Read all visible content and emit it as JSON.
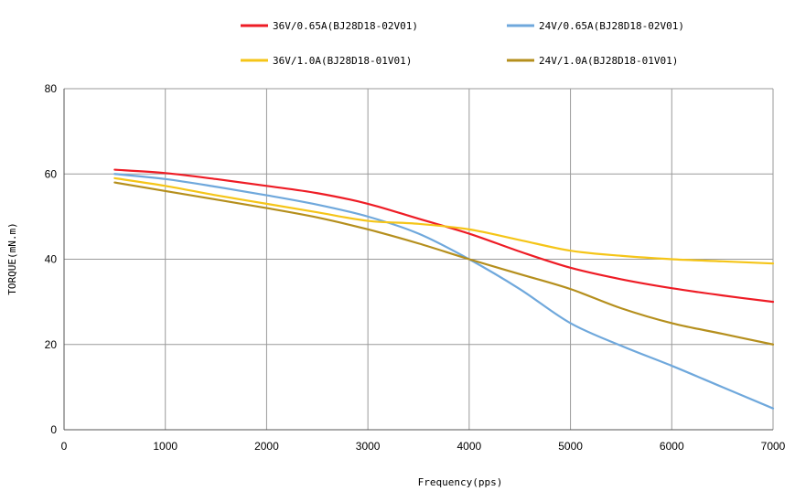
{
  "chart_data": {
    "type": "line",
    "title": "",
    "xlabel": "Frequency(pps)",
    "ylabel": "TORQUE(mN.m)",
    "xlim": [
      0,
      7000
    ],
    "ylim": [
      0,
      80
    ],
    "x_ticks": [
      0,
      1000,
      2000,
      3000,
      4000,
      5000,
      6000,
      7000
    ],
    "y_ticks": [
      0,
      20,
      40,
      60,
      80
    ],
    "grid": true,
    "legend_position": "top",
    "series": [
      {
        "name": "36V/0.65A(BJ28D18-02V01)",
        "color": "#ee1c25",
        "x": [
          500,
          1000,
          1500,
          2000,
          2500,
          3000,
          3500,
          4000,
          4500,
          5000,
          5500,
          6000,
          6500,
          7000
        ],
        "y": [
          61,
          60.2,
          58.8,
          57.2,
          55.5,
          53,
          49.5,
          46,
          41.8,
          38,
          35.3,
          33.2,
          31.5,
          30
        ]
      },
      {
        "name": "24V/0.65A(BJ28D18-02V01)",
        "color": "#6fa8dc",
        "x": [
          500,
          1000,
          1500,
          2000,
          2500,
          3000,
          3500,
          4000,
          4500,
          5000,
          5500,
          6000,
          6500,
          7000
        ],
        "y": [
          60,
          58.8,
          57,
          55,
          52.8,
          50,
          46,
          40,
          33,
          25,
          19.7,
          15,
          10,
          5
        ]
      },
      {
        "name": "36V/1.0A(BJ28D18-01V01)",
        "color": "#f5c518",
        "x": [
          500,
          1000,
          1500,
          2000,
          2500,
          3000,
          3500,
          4000,
          4500,
          5000,
          5500,
          6000,
          6500,
          7000
        ],
        "y": [
          59,
          57.2,
          55,
          53,
          51,
          49,
          48.3,
          47,
          44.5,
          42,
          40.8,
          40,
          39.5,
          39
        ]
      },
      {
        "name": "24V/1.0A(BJ28D18-01V01)",
        "color": "#b58f1d",
        "x": [
          500,
          1000,
          1500,
          2000,
          2500,
          3000,
          3500,
          4000,
          4500,
          5000,
          5500,
          6000,
          6500,
          7000
        ],
        "y": [
          58,
          56,
          54,
          52,
          49.8,
          47,
          43.7,
          40,
          36.5,
          33,
          28.5,
          25,
          22.5,
          20
        ]
      }
    ]
  }
}
